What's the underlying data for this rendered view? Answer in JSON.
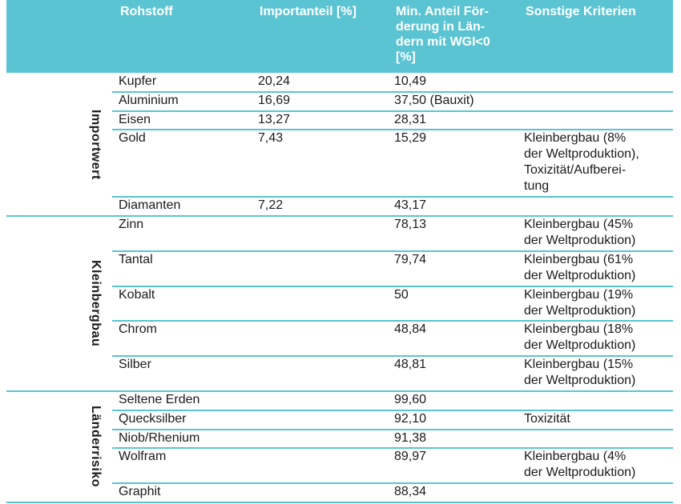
{
  "headers": [
    "Rohstoff",
    "Importanteil [%]",
    "Min. Anteil Förderung in Ländern mit WGI<0 [%]",
    "Sonstige Kriterien"
  ],
  "header_lines": {
    "col3": [
      "Min. Anteil För-",
      "derung in Län-",
      "dern mit WGI<0",
      "[%]"
    ]
  },
  "groups": [
    {
      "label": "Importwert",
      "rows": [
        {
          "rohstoff": "Kupfer",
          "import": "20,24",
          "min": "10,49",
          "kriterien": []
        },
        {
          "rohstoff": "Aluminium",
          "import": "16,69",
          "min": "37,50 (Bauxit)",
          "kriterien": []
        },
        {
          "rohstoff": "Eisen",
          "import": "13,27",
          "min": "28,31",
          "kriterien": []
        },
        {
          "rohstoff": "Gold",
          "import": "7,43",
          "min": "15,29",
          "kriterien": [
            "Kleinbergbau (8%",
            "der Weltproduktion),",
            "Toxizität/Aufberei-",
            "tung"
          ]
        },
        {
          "rohstoff": "Diamanten",
          "import": "7,22",
          "min": "43,17",
          "kriterien": []
        }
      ]
    },
    {
      "label": "Kleinbergbau",
      "rows": [
        {
          "rohstoff": "Zinn",
          "import": "",
          "min": "78,13",
          "kriterien": [
            "Kleinbergbau (45%",
            "der Weltproduktion)"
          ]
        },
        {
          "rohstoff": "Tantal",
          "import": "",
          "min": "79,74",
          "kriterien": [
            "Kleinbergbau (61%",
            "der Weltproduktion)"
          ]
        },
        {
          "rohstoff": "Kobalt",
          "import": "",
          "min": "50",
          "kriterien": [
            "Kleinbergbau (19%",
            "der Weltproduktion)"
          ]
        },
        {
          "rohstoff": "Chrom",
          "import": "",
          "min": "48,84",
          "kriterien": [
            "Kleinbergbau (18%",
            "der Weltproduktion)"
          ]
        },
        {
          "rohstoff": "Silber",
          "import": "",
          "min": "48,81",
          "kriterien": [
            "Kleinbergbau (15%",
            "der Weltproduktion)"
          ]
        }
      ]
    },
    {
      "label": "Länderrisiko",
      "rows": [
        {
          "rohstoff": "Seltene Erden",
          "import": "",
          "min": "99,60",
          "kriterien": []
        },
        {
          "rohstoff": "Quecksilber",
          "import": "",
          "min": "92,10",
          "kriterien": [
            "Toxizität"
          ]
        },
        {
          "rohstoff": "Niob/Rhenium",
          "import": "",
          "min": "91,38",
          "kriterien": []
        },
        {
          "rohstoff": "Wolfram",
          "import": "",
          "min": "89,97",
          "kriterien": [
            "Kleinbergbau (4%",
            "der Weltproduktion)"
          ]
        },
        {
          "rohstoff": "Graphit",
          "import": "",
          "min": "88,34",
          "kriterien": []
        }
      ]
    }
  ]
}
